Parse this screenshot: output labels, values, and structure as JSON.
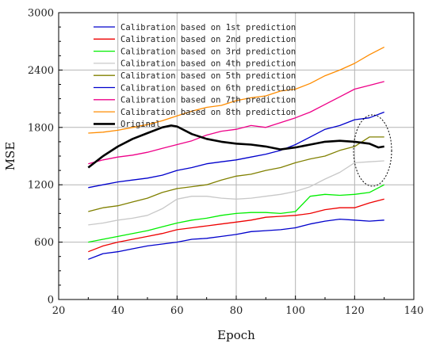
{
  "chart_data": {
    "type": "line",
    "title": "",
    "xlabel": "Epoch",
    "ylabel": "MSE",
    "xlim": [
      20,
      140
    ],
    "ylim": [
      0,
      3000
    ],
    "xticks": [
      20,
      40,
      60,
      80,
      100,
      120,
      140
    ],
    "yticks": [
      0,
      600,
      1200,
      1800,
      2400,
      3000
    ],
    "grid": true,
    "legend_position": "top-left",
    "annotation": "dashed ellipse around epochs 121–131",
    "series": [
      {
        "name": "Calibration based on 1st prediction",
        "color": "#0000cc",
        "x": [
          30,
          35,
          40,
          45,
          50,
          55,
          60,
          65,
          70,
          75,
          80,
          85,
          90,
          95,
          100,
          105,
          110,
          115,
          120,
          125,
          130
        ],
        "y": [
          420,
          480,
          500,
          530,
          560,
          580,
          600,
          630,
          640,
          660,
          680,
          710,
          720,
          730,
          750,
          790,
          820,
          840,
          830,
          820,
          830
        ]
      },
      {
        "name": "Calibration based on 2nd prediction",
        "color": "#ee0000",
        "x": [
          30,
          35,
          40,
          45,
          50,
          55,
          60,
          65,
          70,
          75,
          80,
          85,
          90,
          95,
          100,
          105,
          110,
          115,
          120,
          125,
          130
        ],
        "y": [
          500,
          560,
          600,
          630,
          660,
          690,
          730,
          750,
          770,
          790,
          810,
          830,
          860,
          870,
          880,
          900,
          940,
          960,
          960,
          1010,
          1050
        ]
      },
      {
        "name": "Calibration based on 3rd prediction",
        "color": "#00ee00",
        "x": [
          30,
          35,
          40,
          45,
          50,
          55,
          60,
          65,
          70,
          75,
          80,
          85,
          90,
          95,
          100,
          105,
          110,
          115,
          120,
          125,
          130
        ],
        "y": [
          600,
          630,
          660,
          690,
          720,
          760,
          800,
          830,
          850,
          880,
          900,
          910,
          910,
          900,
          920,
          1080,
          1100,
          1090,
          1100,
          1120,
          1200
        ]
      },
      {
        "name": "Calibration based on 4th prediction",
        "color": "#c8c8c8",
        "x": [
          30,
          35,
          40,
          45,
          50,
          55,
          60,
          65,
          70,
          75,
          80,
          85,
          90,
          95,
          100,
          105,
          110,
          115,
          120,
          125,
          130
        ],
        "y": [
          780,
          800,
          830,
          850,
          880,
          950,
          1050,
          1080,
          1080,
          1060,
          1050,
          1060,
          1080,
          1100,
          1130,
          1180,
          1260,
          1330,
          1430,
          1440,
          1450
        ]
      },
      {
        "name": "Calibration based on 5th prediction",
        "color": "#808000",
        "x": [
          30,
          35,
          40,
          45,
          50,
          55,
          60,
          65,
          70,
          75,
          80,
          85,
          90,
          95,
          100,
          105,
          110,
          115,
          120,
          125,
          130
        ],
        "y": [
          920,
          960,
          980,
          1020,
          1060,
          1120,
          1160,
          1180,
          1200,
          1250,
          1290,
          1310,
          1350,
          1380,
          1430,
          1470,
          1500,
          1560,
          1600,
          1700,
          1700
        ]
      },
      {
        "name": "Calibration based on 6th prediction",
        "color": "#0000cc",
        "x": [
          30,
          35,
          40,
          45,
          50,
          55,
          60,
          65,
          70,
          75,
          80,
          85,
          90,
          95,
          100,
          105,
          110,
          115,
          120,
          125,
          130
        ],
        "y": [
          1170,
          1200,
          1230,
          1250,
          1270,
          1300,
          1350,
          1380,
          1420,
          1440,
          1460,
          1490,
          1520,
          1560,
          1620,
          1700,
          1780,
          1820,
          1880,
          1900,
          1960
        ]
      },
      {
        "name": "Calibration based on 7th prediction",
        "color": "#ee0088",
        "x": [
          30,
          35,
          40,
          45,
          50,
          55,
          60,
          65,
          70,
          75,
          80,
          85,
          90,
          95,
          100,
          105,
          110,
          115,
          120,
          125,
          130
        ],
        "y": [
          1420,
          1460,
          1490,
          1510,
          1540,
          1580,
          1620,
          1660,
          1720,
          1760,
          1780,
          1820,
          1800,
          1850,
          1900,
          1960,
          2040,
          2120,
          2200,
          2240,
          2280
        ]
      },
      {
        "name": "Calibration based on 8th prediction",
        "color": "#ff8c00",
        "x": [
          30,
          35,
          40,
          45,
          50,
          55,
          60,
          65,
          70,
          75,
          80,
          85,
          90,
          95,
          100,
          105,
          110,
          115,
          120,
          125,
          130
        ],
        "y": [
          1740,
          1750,
          1770,
          1800,
          1830,
          1870,
          1920,
          1970,
          2010,
          2030,
          2080,
          2110,
          2130,
          2180,
          2200,
          2260,
          2340,
          2400,
          2470,
          2560,
          2640
        ]
      },
      {
        "name": "Original",
        "color": "#000000",
        "x": [
          30,
          35,
          40,
          45,
          50,
          55,
          58,
          60,
          65,
          70,
          75,
          80,
          85,
          90,
          95,
          100,
          105,
          110,
          115,
          120,
          125,
          128,
          130
        ],
        "y": [
          1380,
          1500,
          1600,
          1680,
          1740,
          1800,
          1820,
          1810,
          1730,
          1680,
          1650,
          1630,
          1620,
          1600,
          1570,
          1590,
          1620,
          1650,
          1660,
          1650,
          1630,
          1590,
          1600
        ]
      }
    ]
  }
}
